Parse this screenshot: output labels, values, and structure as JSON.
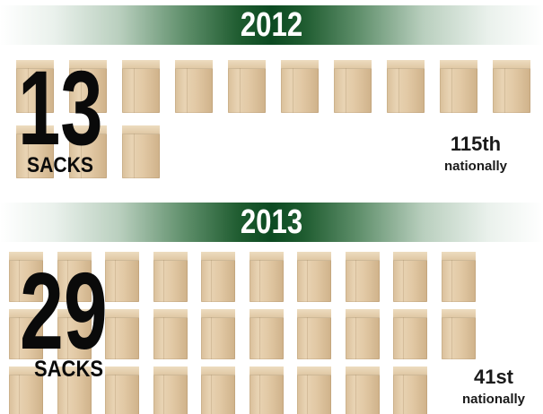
{
  "sections": [
    {
      "year": "2012",
      "sacks_count": "13",
      "sacks_label": "SACKS",
      "rank": "115th",
      "rank_label": "nationally"
    },
    {
      "year": "2013",
      "sacks_count": "29",
      "sacks_label": "SACKS",
      "rank": "41st",
      "rank_label": "nationally"
    }
  ],
  "colors": {
    "banner_green": "#0c4a22",
    "sack_tan": "#e2c9a5",
    "text_dark": "#0a0a0a"
  },
  "icons": {
    "sack": "paper-bag-icon"
  }
}
